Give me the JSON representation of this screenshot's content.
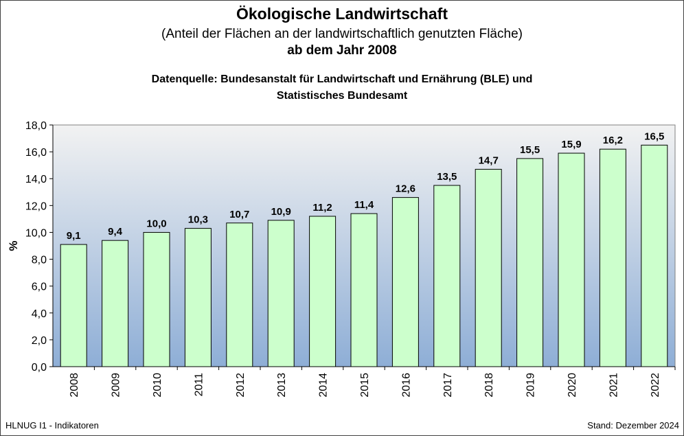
{
  "header": {
    "title": "Ökologische Landwirtschaft",
    "subtitle": "(Anteil der Flächen an der landwirtschaftlich genutzten Fläche)",
    "title2": "ab dem Jahr 2008",
    "source_line1": "Datenquelle: Bundesanstalt für Landwirtschaft und Ernährung (BLE) und",
    "source_line2": "Statistisches Bundesamt"
  },
  "footer": {
    "left": "HLNUG I1 - Indikatoren",
    "right": "Stand: Dezember 2024"
  },
  "colors": {
    "bar_fill": "#ccffcc",
    "bar_stroke": "#000000",
    "plot_bg_top": "#f2f2f2",
    "plot_bg_bottom": "#8eaed6"
  },
  "chart_data": {
    "type": "bar",
    "ylabel": "%",
    "ylim": [
      0,
      18
    ],
    "yticks": [
      "0,0",
      "2,0",
      "4,0",
      "6,0",
      "8,0",
      "10,0",
      "12,0",
      "14,0",
      "16,0",
      "18,0"
    ],
    "categories": [
      "2008",
      "2009",
      "2010",
      "2011",
      "2012",
      "2013",
      "2014",
      "2015",
      "2016",
      "2017",
      "2018",
      "2019",
      "2020",
      "2021",
      "2022"
    ],
    "values": [
      9.1,
      9.4,
      10.0,
      10.3,
      10.7,
      10.9,
      11.2,
      11.4,
      12.6,
      13.5,
      14.7,
      15.5,
      15.9,
      16.2,
      16.5
    ],
    "data_labels": [
      "9,1",
      "9,4",
      "10,0",
      "10,3",
      "10,7",
      "10,9",
      "11,2",
      "11,4",
      "12,6",
      "13,5",
      "14,7",
      "15,5",
      "15,9",
      "16,2",
      "16,5"
    ],
    "grid": false,
    "legend": "none"
  }
}
